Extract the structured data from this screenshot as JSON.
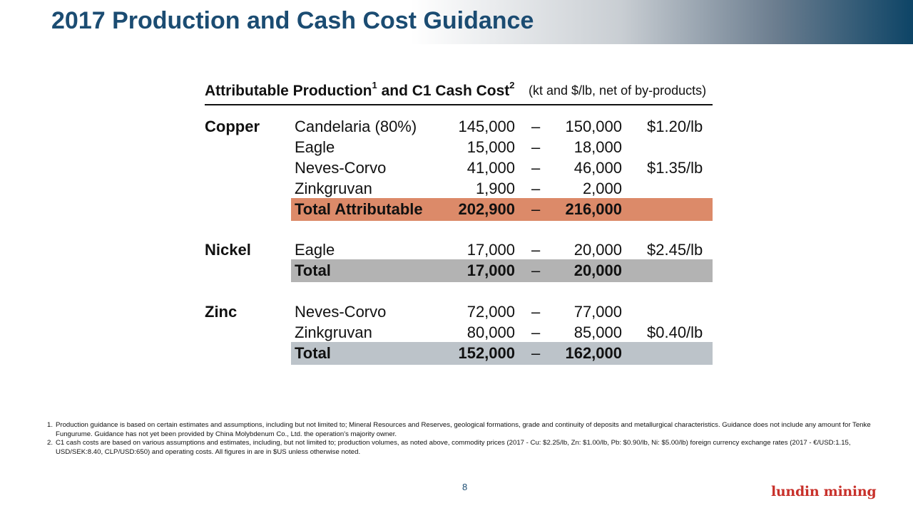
{
  "title": "2017 Production and Cash Cost Guidance",
  "table": {
    "header": {
      "part1": "Attributable Production",
      "sup1": "1",
      "part2": " and C1 Cash Cost",
      "sup2": "2",
      "units": " (kt and $/lb, net of by-products)"
    },
    "dash": "–",
    "copper": {
      "label": "Copper",
      "rows": [
        {
          "mine": "Candelaria (80%)",
          "low": "145,000",
          "high": "150,000",
          "cost": "$1.20/lb"
        },
        {
          "mine": "Eagle",
          "low": "15,000",
          "high": "18,000",
          "cost": ""
        },
        {
          "mine": "Neves-Corvo",
          "low": "41,000",
          "high": "46,000",
          "cost": "$1.35/lb"
        },
        {
          "mine": "Zinkgruvan",
          "low": "1,900",
          "high": "2,000",
          "cost": ""
        }
      ],
      "total": {
        "label": "Total Attributable",
        "low": "202,900",
        "high": "216,000"
      }
    },
    "nickel": {
      "label": "Nickel",
      "rows": [
        {
          "mine": "Eagle",
          "low": "17,000",
          "high": "20,000",
          "cost": "$2.45/lb"
        }
      ],
      "total": {
        "label": "Total",
        "low": "17,000",
        "high": "20,000"
      }
    },
    "zinc": {
      "label": "Zinc",
      "rows": [
        {
          "mine": "Neves-Corvo",
          "low": "72,000",
          "high": "77,000",
          "cost": ""
        },
        {
          "mine": "Zinkgruvan",
          "low": "80,000",
          "high": "85,000",
          "cost": "$0.40/lb"
        }
      ],
      "total": {
        "label": "Total",
        "low": "152,000",
        "high": "162,000"
      }
    }
  },
  "colors": {
    "title": "#1b4c72",
    "copper_total_band": "#dc8a69",
    "nickel_total_band": "#b3b3b3",
    "zinc_total_band": "#bcc3c9",
    "logo": "#c8312b"
  },
  "footnotes": [
    {
      "num": "1.",
      "text": "Production guidance is based on certain estimates and assumptions, including but not limited to; Mineral Resources and Reserves, geological formations, grade and continuity of deposits and metallurgical characteristics. Guidance does not include any amount for Tenke Fungurume. Guidance has not yet been provided by China Molybdenum Co., Ltd. the operation's majority owner."
    },
    {
      "num": "2.",
      "text": "C1 cash costs are based on various assumptions and estimates, including, but not limited to; production volumes, as noted above, commodity prices (2017 - Cu: $2.25/lb, Zn: $1.00/lb, Pb: $0.90/lb, Ni: $5.00/lb) foreign currency exchange rates (2017 - €/USD:1.15, USD/SEK:8.40, CLP/USD:650) and operating costs. All figures in are in $US unless otherwise noted."
    }
  ],
  "page_number": "8",
  "logo_text": "lundin mining"
}
